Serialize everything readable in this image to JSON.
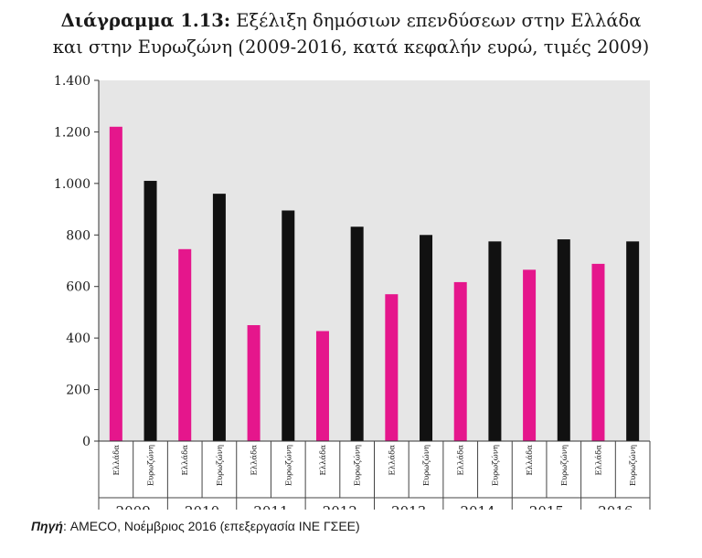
{
  "title": {
    "number": "Διάγραμμα 1.13:",
    "line1_rest": "Εξέλιξη δημόσιων επενδύσεων στην Ελλάδα",
    "line2": "και στην Ευρωζώνη (2009-2016, κατά κεφαλήν ευρώ, τιμές 2009)"
  },
  "source": {
    "label": "Πηγή",
    "text": ": AMECO, Νοέμβριος 2016 (επεξεργασία ΙΝΕ ΓΣΕΕ)"
  },
  "chart_data": {
    "type": "bar",
    "title": "Εξέλιξη δημόσιων επενδύσεων στην Ελλάδα και στην Ευρωζώνη (2009-2016, κατά κεφαλήν ευρώ, τιμές 2009)",
    "categories": [
      "2009",
      "2010",
      "2011",
      "2012",
      "2013",
      "2014",
      "2015",
      "2016"
    ],
    "series": [
      {
        "name": "Ελλάδα",
        "color": "#e5168c",
        "values": [
          1220,
          745,
          450,
          427,
          570,
          617,
          665,
          688
        ]
      },
      {
        "name": "Ευρωζώνη",
        "color": "#111111",
        "values": [
          1010,
          960,
          895,
          832,
          800,
          775,
          783,
          775
        ]
      }
    ],
    "ylim": [
      0,
      1400
    ],
    "yticks": [
      {
        "value": 0,
        "label": "0"
      },
      {
        "value": 200,
        "label": "200"
      },
      {
        "value": 400,
        "label": "400"
      },
      {
        "value": 600,
        "label": "600"
      },
      {
        "value": 800,
        "label": "800"
      },
      {
        "value": 1000,
        "label": "1.000"
      },
      {
        "value": 1200,
        "label": "1.200"
      },
      {
        "value": 1400,
        "label": "1.400"
      }
    ],
    "plot_background": "#e6e6e6",
    "xlabel": "",
    "ylabel": ""
  }
}
